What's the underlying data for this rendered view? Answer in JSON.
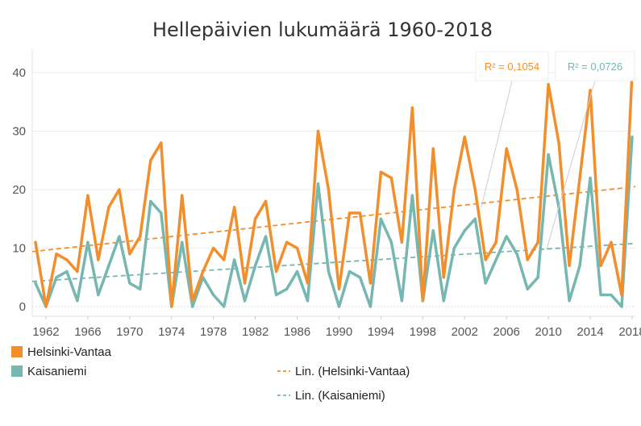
{
  "chart_data": {
    "type": "line",
    "title": "Hellepäivien lukumäärä 1960-2018",
    "xlabel": "",
    "ylabel": "",
    "x": [
      1961,
      1962,
      1963,
      1964,
      1965,
      1966,
      1967,
      1968,
      1969,
      1970,
      1971,
      1972,
      1973,
      1974,
      1975,
      1976,
      1977,
      1978,
      1979,
      1980,
      1981,
      1982,
      1983,
      1984,
      1985,
      1986,
      1987,
      1988,
      1989,
      1990,
      1991,
      1992,
      1993,
      1994,
      1995,
      1996,
      1997,
      1998,
      1999,
      2000,
      2001,
      2002,
      2003,
      2004,
      2005,
      2006,
      2007,
      2008,
      2009,
      2010,
      2011,
      2012,
      2013,
      2014,
      2015,
      2016,
      2017,
      2018
    ],
    "x_ticks": [
      "1962",
      "1966",
      "1970",
      "1974",
      "1978",
      "1982",
      "1986",
      "1990",
      "1994",
      "1998",
      "2002",
      "2006",
      "2010",
      "2014",
      "2018"
    ],
    "y_ticks": [
      "0",
      "10",
      "20",
      "30",
      "40"
    ],
    "ylim": [
      0,
      42
    ],
    "grid": true,
    "series": [
      {
        "name": "Helsinki-Vantaa",
        "color": "#f28e2b",
        "values": [
          11,
          0,
          9,
          8,
          6,
          19,
          8,
          17,
          20,
          9,
          12,
          25,
          28,
          0,
          19,
          1,
          6,
          10,
          8,
          17,
          4,
          15,
          18,
          6,
          11,
          10,
          4,
          30,
          20,
          3,
          16,
          16,
          4,
          23,
          22,
          11,
          34,
          1,
          27,
          5,
          20,
          29,
          20,
          8,
          11,
          27,
          20,
          8,
          11,
          38,
          28,
          7,
          22,
          37,
          7,
          11,
          2,
          40
        ]
      },
      {
        "name": "Kaisaniemi",
        "color": "#76b7b2",
        "values": [
          4,
          0,
          5,
          6,
          1,
          11,
          2,
          7,
          12,
          4,
          3,
          18,
          16,
          0,
          11,
          0,
          5,
          2,
          0,
          8,
          1,
          7,
          12,
          2,
          3,
          6,
          1,
          21,
          6,
          0,
          6,
          5,
          0,
          15,
          11,
          1,
          19,
          1,
          13,
          1,
          10,
          13,
          15,
          4,
          8,
          12,
          9,
          3,
          5,
          26,
          17,
          1,
          7,
          22,
          2,
          2,
          0,
          29
        ]
      }
    ],
    "trendlines": [
      {
        "name": "Lin. (Helsinki-Vantaa)",
        "color": "#f28e2b",
        "r2_label": "R² = 0,1054",
        "start": 9.4,
        "end": 20.5
      },
      {
        "name": "Lin. (Kaisaniemi)",
        "color": "#76b7b2",
        "r2_label": "R² = 0,0726",
        "start": 4.3,
        "end": 10.8
      }
    ]
  }
}
